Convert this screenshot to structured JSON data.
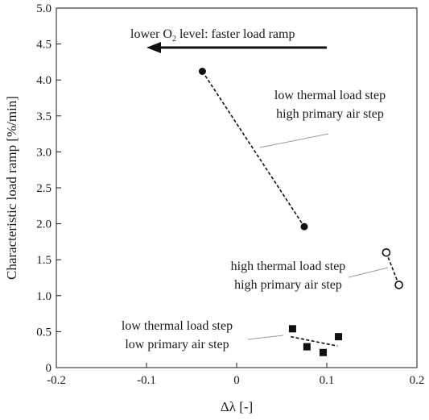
{
  "chart_data": {
    "type": "scatter",
    "title": "",
    "xlabel": "Δλ [-]",
    "ylabel": "Characteristic load ramp [%/min]",
    "xlim": [
      -0.2,
      0.2
    ],
    "ylim": [
      0,
      5.0
    ],
    "x_ticks": [
      "-0.2",
      "-0.1",
      "0",
      "0.1",
      "0.2"
    ],
    "y_ticks": [
      "0",
      "0.5",
      "1.0",
      "1.5",
      "2.0",
      "2.5",
      "3.0",
      "3.5",
      "4.0",
      "4.5",
      "5.0"
    ],
    "grid": false,
    "series": [
      {
        "marker": "filled-circle",
        "points": [
          {
            "x": -0.038,
            "y": 4.12
          },
          {
            "x": 0.075,
            "y": 1.96
          }
        ],
        "trend": {
          "from": [
            -0.038,
            4.12
          ],
          "to": [
            0.075,
            1.96
          ]
        }
      },
      {
        "marker": "open-circle",
        "points": [
          {
            "x": 0.166,
            "y": 1.6
          },
          {
            "x": 0.18,
            "y": 1.15
          }
        ],
        "trend": {
          "from": [
            0.166,
            1.6
          ],
          "to": [
            0.18,
            1.15
          ]
        }
      },
      {
        "marker": "filled-square",
        "points": [
          {
            "x": 0.062,
            "y": 0.54
          },
          {
            "x": 0.078,
            "y": 0.29
          },
          {
            "x": 0.096,
            "y": 0.21
          },
          {
            "x": 0.113,
            "y": 0.43
          }
        ],
        "trend": {
          "from": [
            0.06,
            0.43
          ],
          "to": [
            0.112,
            0.3
          ]
        }
      }
    ],
    "arrow": {
      "label_prefix": "lower O",
      "label_sub": "2",
      "label_suffix": " level: faster load ramp",
      "from": [
        0.1,
        4.45
      ],
      "to": [
        -0.1,
        4.45
      ]
    },
    "annotations": [
      {
        "lines": [
          "low thermal load step",
          "high primary air step"
        ]
      },
      {
        "lines": [
          "high thermal load step",
          "high primary air step"
        ]
      },
      {
        "lines": [
          "low thermal load step",
          "low primary air step"
        ]
      }
    ]
  }
}
